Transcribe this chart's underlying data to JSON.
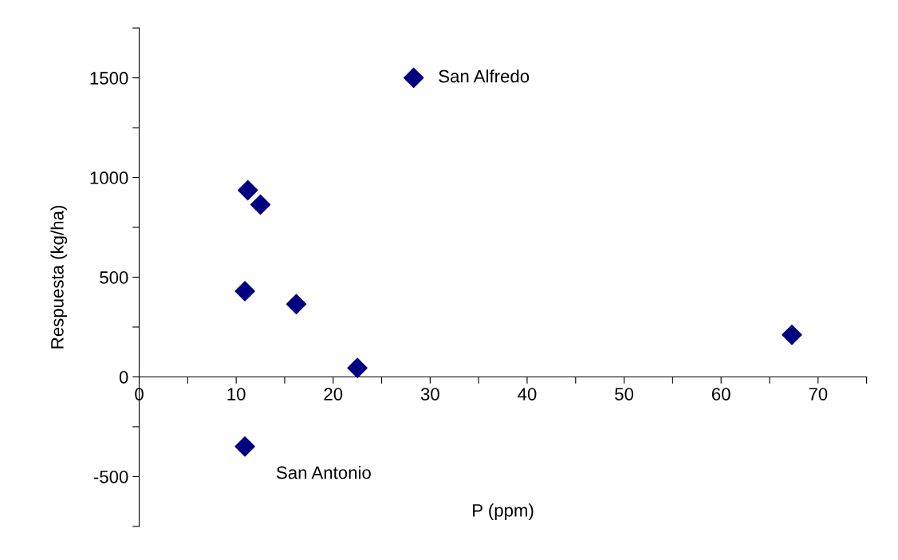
{
  "chart_data": {
    "type": "scatter",
    "xlabel": "P (ppm)",
    "ylabel": "Respuesta (kg/ha)",
    "x": [
      28.3,
      11.2,
      12.5,
      10.9,
      16.2,
      22.5,
      67.3,
      10.9
    ],
    "values": [
      1500,
      936,
      864,
      430,
      365,
      45,
      211,
      -349
    ],
    "color": "#000080",
    "marker": "diamond",
    "xlim": [
      0,
      75
    ],
    "ylim": [
      -750,
      1750
    ],
    "xticks": [
      0,
      {
        "value": 5,
        "label": null
      },
      10,
      {
        "value": 15,
        "label": null
      },
      20,
      {
        "value": 25,
        "label": null
      },
      30,
      {
        "value": 35,
        "label": null
      },
      40,
      {
        "value": 45,
        "label": null
      },
      50,
      {
        "value": 55,
        "label": null
      },
      60,
      {
        "value": 65,
        "label": null
      },
      70,
      {
        "value": 75,
        "label": null
      }
    ],
    "yticks": [
      {
        "value": -750,
        "label": null
      },
      -500,
      {
        "value": -250,
        "label": null
      },
      0,
      {
        "value": 250,
        "label": null
      },
      500,
      {
        "value": 750,
        "label": null
      },
      1000,
      {
        "value": 1250,
        "label": null
      },
      1500,
      {
        "value": 1750,
        "label": null
      }
    ],
    "annotations": [
      {
        "text": "San Alfredo",
        "x": 28.3,
        "y": 1500
      },
      {
        "text": "San Antonio",
        "x": 10.9,
        "y": -349
      }
    ],
    "grid": false,
    "legend": false
  }
}
